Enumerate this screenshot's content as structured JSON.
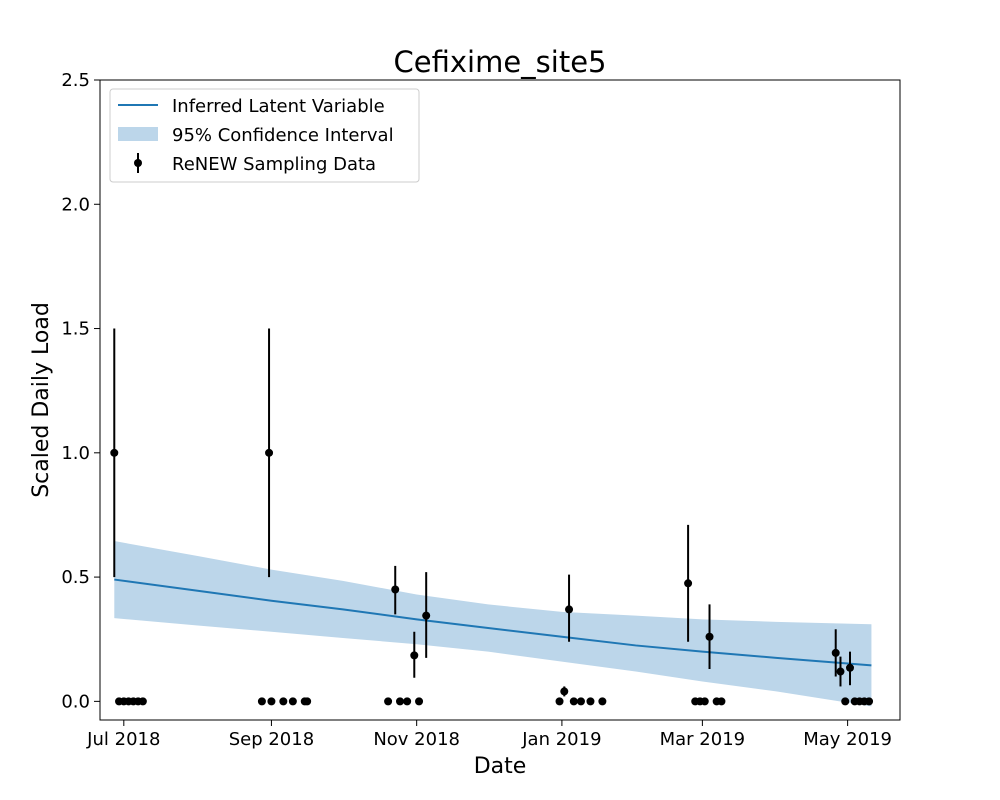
{
  "chart_data": {
    "type": "line",
    "title": "Cefixime_site5",
    "xlabel": "Date",
    "ylabel": "Scaled Daily Load",
    "xlim": [
      "2018-06-21",
      "2019-05-23"
    ],
    "ylim": [
      -0.075,
      2.5
    ],
    "x_ticks": [
      {
        "date": "2018-07-01",
        "label": "Jul 2018"
      },
      {
        "date": "2018-09-01",
        "label": "Sep 2018"
      },
      {
        "date": "2018-11-01",
        "label": "Nov 2018"
      },
      {
        "date": "2019-01-01",
        "label": "Jan 2019"
      },
      {
        "date": "2019-03-01",
        "label": "Mar 2019"
      },
      {
        "date": "2019-05-01",
        "label": "May 2019"
      }
    ],
    "y_ticks": [
      {
        "value": 0.0,
        "label": "0.0"
      },
      {
        "value": 0.5,
        "label": "0.5"
      },
      {
        "value": 1.0,
        "label": "1.0"
      },
      {
        "value": 1.5,
        "label": "1.5"
      },
      {
        "value": 2.0,
        "label": "2.0"
      },
      {
        "value": 2.5,
        "label": "2.5"
      }
    ],
    "grid": false,
    "legend_position": "top-left",
    "legend": {
      "line": "Inferred Latent Variable",
      "band": "95% Confidence Interval",
      "points": "ReNEW Sampling Data"
    },
    "colors": {
      "line": "#1f77b4",
      "band": "#bcd6ea",
      "points": "#000000"
    },
    "latent": {
      "x": [
        "2018-06-27",
        "2018-08-01",
        "2018-09-01",
        "2018-10-01",
        "2018-11-01",
        "2018-12-01",
        "2019-01-01",
        "2019-02-01",
        "2019-03-01",
        "2019-04-01",
        "2019-05-11"
      ],
      "y": [
        0.49,
        0.445,
        0.405,
        0.37,
        0.33,
        0.295,
        0.26,
        0.225,
        0.2,
        0.175,
        0.145
      ],
      "lower": [
        0.335,
        0.305,
        0.28,
        0.255,
        0.23,
        0.2,
        0.16,
        0.12,
        0.08,
        0.04,
        -0.02
      ],
      "upper": [
        0.645,
        0.585,
        0.53,
        0.485,
        0.43,
        0.39,
        0.36,
        0.345,
        0.33,
        0.32,
        0.31
      ]
    },
    "samples": [
      {
        "x": "2018-06-27",
        "y": 1.0,
        "lo": 0.5,
        "hi": 1.5
      },
      {
        "x": "2018-06-29",
        "y": 0.0
      },
      {
        "x": "2018-07-01",
        "y": 0.0
      },
      {
        "x": "2018-07-03",
        "y": 0.0
      },
      {
        "x": "2018-07-05",
        "y": 0.0
      },
      {
        "x": "2018-07-07",
        "y": 0.0
      },
      {
        "x": "2018-07-09",
        "y": 0.0
      },
      {
        "x": "2018-08-28",
        "y": 0.0
      },
      {
        "x": "2018-08-31",
        "y": 1.0,
        "lo": 0.5,
        "hi": 1.5
      },
      {
        "x": "2018-09-01",
        "y": 0.0
      },
      {
        "x": "2018-09-06",
        "y": 0.0
      },
      {
        "x": "2018-09-10",
        "y": 0.0
      },
      {
        "x": "2018-09-15",
        "y": 0.0
      },
      {
        "x": "2018-09-16",
        "y": 0.0
      },
      {
        "x": "2018-10-20",
        "y": 0.0
      },
      {
        "x": "2018-10-23",
        "y": 0.45,
        "lo": 0.35,
        "hi": 0.545
      },
      {
        "x": "2018-10-25",
        "y": 0.0
      },
      {
        "x": "2018-10-28",
        "y": 0.0
      },
      {
        "x": "2018-10-31",
        "y": 0.185,
        "lo": 0.095,
        "hi": 0.28
      },
      {
        "x": "2018-11-02",
        "y": 0.0
      },
      {
        "x": "2018-11-05",
        "y": 0.345,
        "lo": 0.175,
        "hi": 0.52
      },
      {
        "x": "2018-12-31",
        "y": 0.0
      },
      {
        "x": "2019-01-02",
        "y": 0.04,
        "lo": 0.02,
        "hi": 0.06
      },
      {
        "x": "2019-01-04",
        "y": 0.37,
        "lo": 0.24,
        "hi": 0.51
      },
      {
        "x": "2019-01-06",
        "y": 0.0
      },
      {
        "x": "2019-01-09",
        "y": 0.0
      },
      {
        "x": "2019-01-13",
        "y": 0.0
      },
      {
        "x": "2019-01-18",
        "y": 0.0
      },
      {
        "x": "2019-02-23",
        "y": 0.475,
        "lo": 0.24,
        "hi": 0.71
      },
      {
        "x": "2019-02-26",
        "y": 0.0
      },
      {
        "x": "2019-02-28",
        "y": 0.0
      },
      {
        "x": "2019-03-02",
        "y": 0.0
      },
      {
        "x": "2019-03-04",
        "y": 0.26,
        "lo": 0.13,
        "hi": 0.39
      },
      {
        "x": "2019-03-07",
        "y": 0.0
      },
      {
        "x": "2019-03-09",
        "y": 0.0
      },
      {
        "x": "2019-04-26",
        "y": 0.195,
        "lo": 0.1,
        "hi": 0.29
      },
      {
        "x": "2019-04-28",
        "y": 0.12,
        "lo": 0.06,
        "hi": 0.18
      },
      {
        "x": "2019-04-30",
        "y": 0.0
      },
      {
        "x": "2019-05-02",
        "y": 0.135,
        "lo": 0.065,
        "hi": 0.2
      },
      {
        "x": "2019-05-04",
        "y": 0.0
      },
      {
        "x": "2019-05-06",
        "y": 0.0
      },
      {
        "x": "2019-05-08",
        "y": 0.0
      },
      {
        "x": "2019-05-10",
        "y": 0.0
      }
    ]
  }
}
